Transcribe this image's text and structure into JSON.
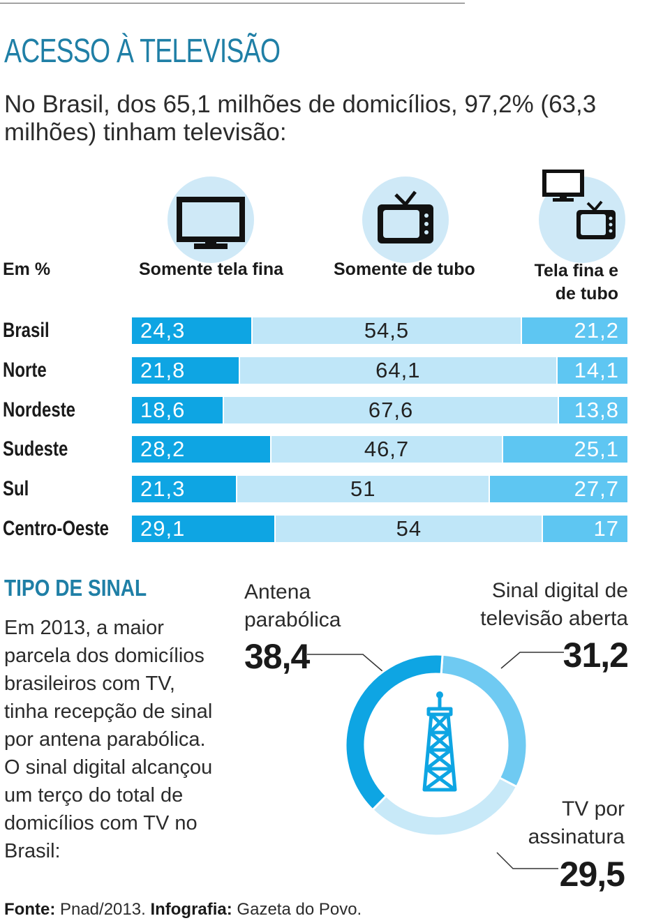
{
  "title": "ACESSO À TELEVISÃO",
  "subtitle": "No Brasil, dos 65,1 milhões de domicílios, 97,2% (63,3 milhões) tinham televisão:",
  "unit_label": "Em %",
  "columns": [
    "Somente tela fina",
    "Somente de tubo",
    "Tela fina e de tubo"
  ],
  "colors": {
    "thin": "#0ea5e3",
    "tube": "#bfe6f8",
    "both": "#5ec6f2",
    "accent": "#1f7fa6",
    "icon_bg": "#cfe9f7"
  },
  "icons": [
    "flat-tv-icon",
    "tube-tv-icon",
    "flat-and-tube-tv-icon",
    "antenna-tower-icon"
  ],
  "chart_data": [
    {
      "type": "bar",
      "stacked": true,
      "orientation": "horizontal",
      "categories": [
        "Brasil",
        "Norte",
        "Nordeste",
        "Sudeste",
        "Sul",
        "Centro-Oeste"
      ],
      "series": [
        {
          "name": "Somente tela fina",
          "values": [
            24.3,
            21.8,
            18.6,
            28.2,
            21.3,
            29.1
          ],
          "labels": [
            "24,3",
            "21,8",
            "18,6",
            "28,2",
            "21,3",
            "29,1"
          ]
        },
        {
          "name": "Somente de tubo",
          "values": [
            54.5,
            64.1,
            67.6,
            46.7,
            51,
            54
          ],
          "labels": [
            "54,5",
            "64,1",
            "67,6",
            "46,7",
            "51",
            "54"
          ]
        },
        {
          "name": "Tela fina e de tubo",
          "values": [
            21.2,
            14.1,
            13.8,
            25.1,
            27.7,
            17
          ],
          "labels": [
            "21,2",
            "14,1",
            "13,8",
            "25,1",
            "27,7",
            "17"
          ]
        }
      ],
      "xlim": [
        0,
        100
      ]
    },
    {
      "type": "pie",
      "donut": true,
      "title": "TIPO DE SINAL",
      "slices": [
        {
          "name": "Sinal digital de televisão aberta",
          "value": 31.2,
          "label": "31,2",
          "color": "#6fcaf2"
        },
        {
          "name": "TV por assinatura",
          "value": 29.5,
          "label": "29,5",
          "color": "#c8e9f8"
        },
        {
          "name": "Antena parabólica",
          "value": 38.4,
          "label": "38,4",
          "color": "#0ea5e3"
        }
      ]
    }
  ],
  "signal": {
    "heading": "TIPO DE SINAL",
    "text": "Em 2013, a maior parcela dos domicílios brasileiros com TV, tinha recepção de sinal por antena parabólica. O sinal digital alcançou um terço do total de domicílios com TV no Brasil:",
    "antena_label_1": "Antena",
    "antena_label_2": "parabólica",
    "antena_value": "38,4",
    "digital_label_1": "Sinal digital de",
    "digital_label_2": "televisão aberta",
    "digital_value": "31,2",
    "assinatura_label_1": "TV por",
    "assinatura_label_2": "assinatura",
    "assinatura_value": "29,5"
  },
  "footer": {
    "source_label": "Fonte:",
    "source_value": " Pnad/2013. ",
    "credit_label": "Infografia:",
    "credit_value": " Gazeta do Povo."
  }
}
